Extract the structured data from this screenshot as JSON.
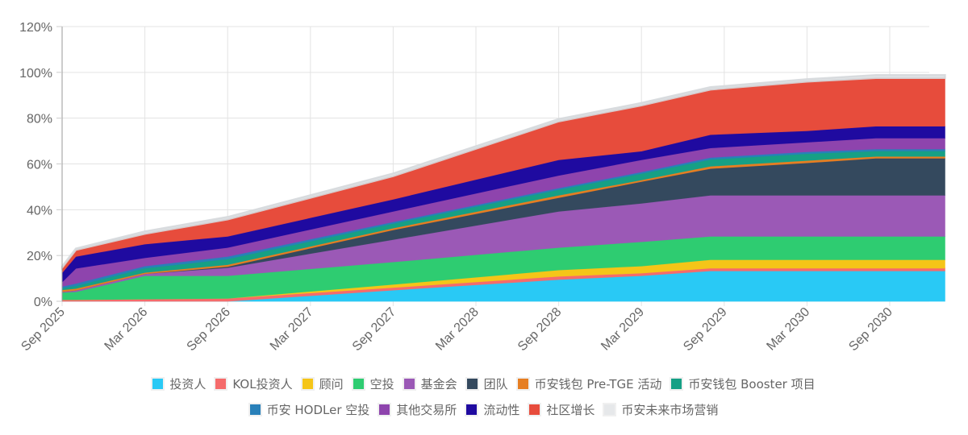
{
  "chart_data": {
    "type": "area",
    "stacked": true,
    "title": "",
    "xlabel": "",
    "ylabel": "",
    "ylim": [
      0,
      120
    ],
    "y_ticks": [
      "0%",
      "20%",
      "40%",
      "60%",
      "80%",
      "100%",
      "120%"
    ],
    "y_tick_values": [
      0,
      20,
      40,
      60,
      80,
      100,
      120
    ],
    "x_tick_labels": [
      "Sep 2025",
      "Mar 2026",
      "Sep 2026",
      "Mar 2027",
      "Sep 2027",
      "Mar 2028",
      "Sep 2028",
      "Mar 2029",
      "Sep 2029",
      "Mar 2030",
      "Sep 2030"
    ],
    "x_tick_months": [
      0,
      6,
      12,
      18,
      24,
      30,
      36,
      42,
      48,
      54,
      60
    ],
    "x_months": [
      0,
      1,
      6,
      12,
      24,
      36,
      42,
      47,
      54,
      59,
      64
    ],
    "x_max_month": 64,
    "grid": true,
    "legend_position": "bottom",
    "cumulative_tops_percent": {
      "note": "stacked cumulative tops (%) per x_months point, bottom to top series order",
      "投资人": [
        0,
        0,
        0,
        0,
        4.9,
        9.5,
        11.2,
        13.3,
        13.3,
        13.3,
        13.3
      ],
      "KOL投资人": [
        0.7,
        0.7,
        1.0,
        1.3,
        6.0,
        10.9,
        12.3,
        14.5,
        14.5,
        14.5,
        14.5
      ],
      "顾问": [
        0.7,
        0.7,
        1.0,
        1.3,
        7.4,
        13.7,
        15.4,
        18.2,
        18.2,
        18.2,
        18.2
      ],
      "空投": [
        3.9,
        4.2,
        11.2,
        11.2,
        17.2,
        23.5,
        26.0,
        28.4,
        28.4,
        28.4,
        28.4
      ],
      "基金会": [
        4.2,
        4.8,
        12.0,
        14.7,
        27.0,
        39.3,
        42.8,
        46.3,
        46.3,
        46.3,
        46.3
      ],
      "团队": [
        4.2,
        4.8,
        12.0,
        15.2,
        31.2,
        45.3,
        52.3,
        58.0,
        60.5,
        62.5,
        62.5
      ],
      "币安钱包 Pre-TGE 活动": [
        5.0,
        5.6,
        12.6,
        16.0,
        32.0,
        46.3,
        53.0,
        59.0,
        61.5,
        63.3,
        63.3
      ],
      "币安钱包 Booster 项目": [
        5.8,
        6.8,
        14.5,
        18.5,
        34.0,
        48.8,
        55.8,
        62.0,
        64.5,
        65.7,
        65.7
      ],
      "币安 HODLer 空投": [
        6.5,
        7.8,
        15.4,
        19.6,
        34.7,
        49.5,
        56.5,
        62.8,
        65.3,
        66.5,
        66.5
      ],
      "其他交易所": [
        8.4,
        14.4,
        19.0,
        23.5,
        39.3,
        55.0,
        61.8,
        67.0,
        69.5,
        71.3,
        71.3
      ],
      "流动性": [
        12.5,
        19.6,
        25.0,
        28.4,
        44.6,
        61.8,
        65.6,
        72.8,
        74.5,
        76.5,
        76.5
      ],
      "社区增长": [
        14.7,
        22.5,
        29.5,
        35.8,
        54.7,
        78.6,
        85.6,
        92.5,
        96.0,
        97.6,
        97.6
      ],
      "币安未来市场营销": [
        15.2,
        23.0,
        30.5,
        36.8,
        55.8,
        79.6,
        86.6,
        93.5,
        97.0,
        98.8,
        98.8
      ]
    },
    "series": [
      {
        "name": "投资人",
        "color": "#29c9f5"
      },
      {
        "name": "KOL投资人",
        "color": "#f56b6b"
      },
      {
        "name": "顾问",
        "color": "#f5c518"
      },
      {
        "name": "空投",
        "color": "#2ecc71"
      },
      {
        "name": "基金会",
        "color": "#9b59b6"
      },
      {
        "name": "团队",
        "color": "#34495e"
      },
      {
        "name": "币安钱包 Pre-TGE 活动",
        "color": "#e67e22"
      },
      {
        "name": "币安钱包 Booster 项目",
        "color": "#16a085"
      },
      {
        "name": "币安 HODLer 空投",
        "color": "#2980b9"
      },
      {
        "name": "其他交易所",
        "color": "#8e44ad"
      },
      {
        "name": "流动性",
        "color": "#1f0aa0"
      },
      {
        "name": "社区增长",
        "color": "#e74c3c"
      },
      {
        "name": "币安未来市场营销",
        "color": "#e6e8ea"
      }
    ]
  },
  "legend": {
    "row1": [
      {
        "label": "投资人",
        "color": "#29c9f5"
      },
      {
        "label": "KOL投资人",
        "color": "#f56b6b"
      },
      {
        "label": "顾问",
        "color": "#f5c518"
      },
      {
        "label": "空投",
        "color": "#2ecc71"
      },
      {
        "label": "基金会",
        "color": "#9b59b6"
      },
      {
        "label": "团队",
        "color": "#34495e"
      },
      {
        "label": "币安钱包 Pre-TGE 活动",
        "color": "#e67e22"
      },
      {
        "label": "币安钱包 Booster 项目",
        "color": "#16a085"
      }
    ],
    "row2": [
      {
        "label": "币安 HODLer 空投",
        "color": "#2980b9"
      },
      {
        "label": "其他交易所",
        "color": "#8e44ad"
      },
      {
        "label": "流动性",
        "color": "#1f0aa0"
      },
      {
        "label": "社区增长",
        "color": "#e74c3c"
      },
      {
        "label": "币安未来市场营销",
        "color": "#e6e8ea"
      }
    ]
  }
}
